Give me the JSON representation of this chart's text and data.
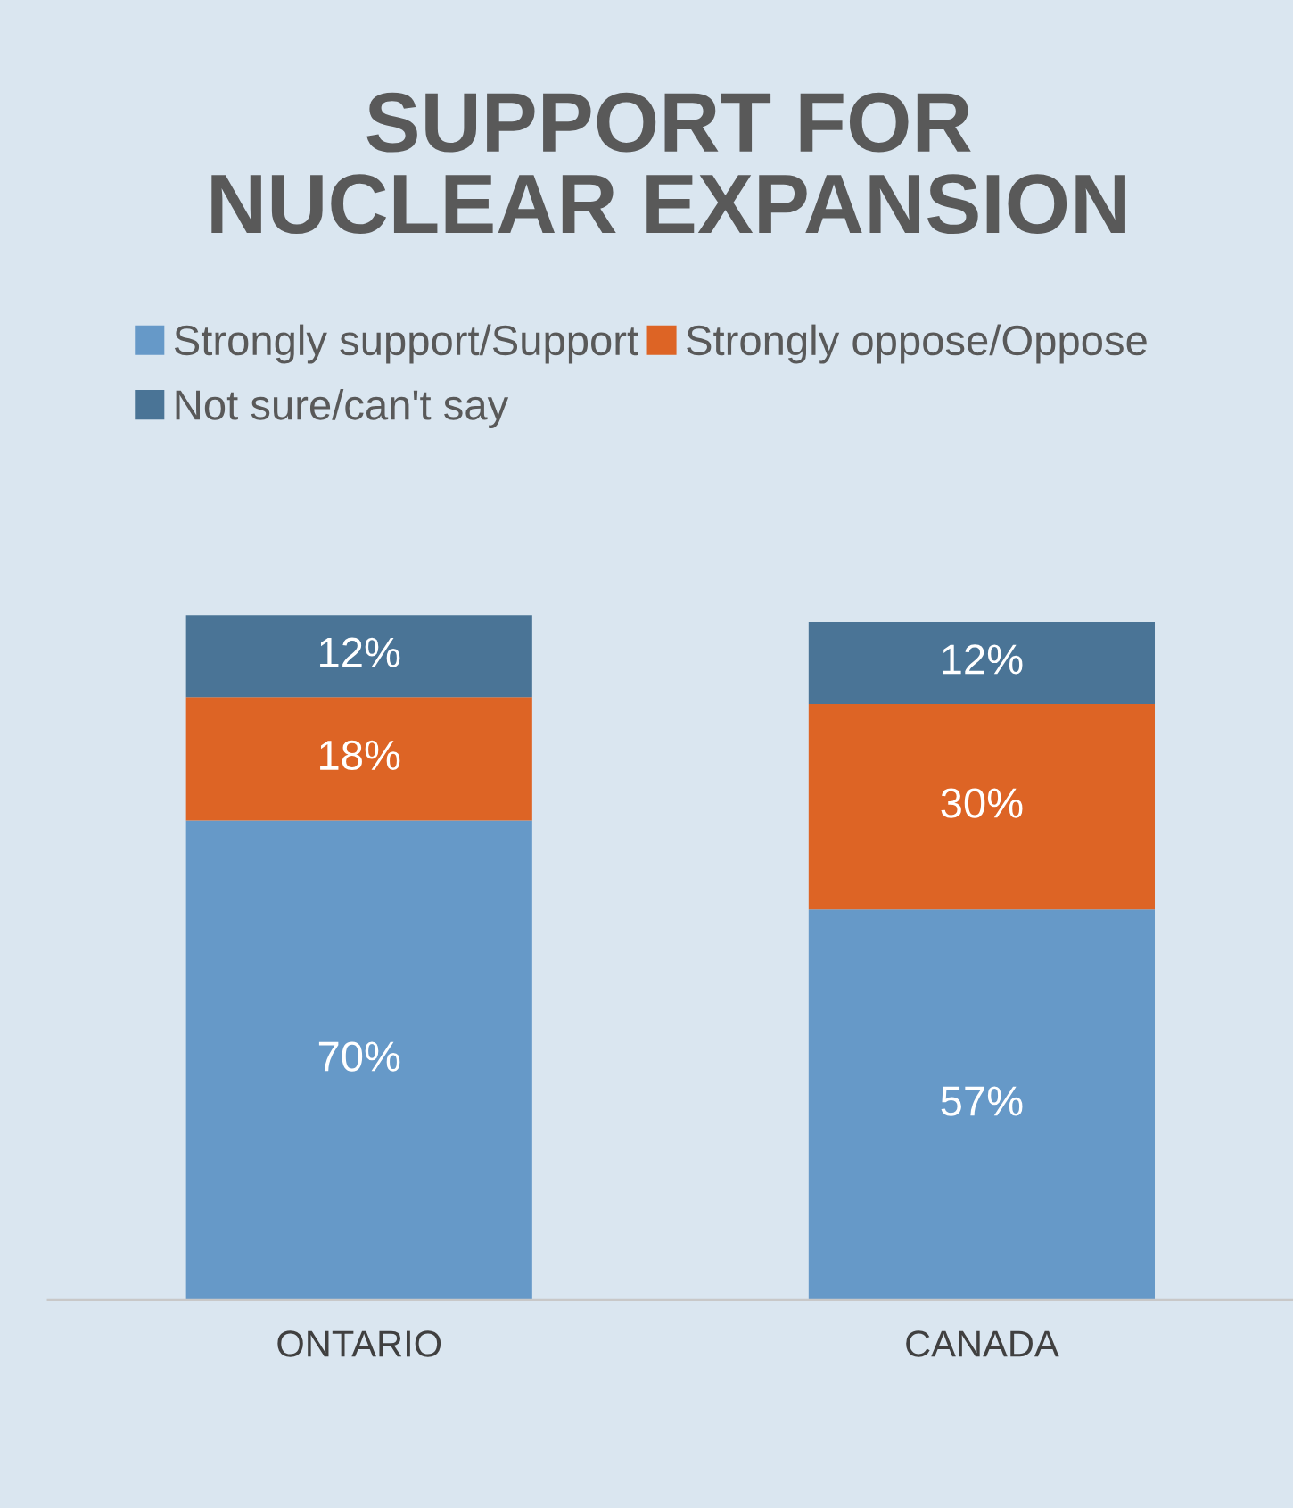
{
  "chart_data": {
    "type": "bar",
    "stacked": true,
    "title": "SUPPORT FOR\nNUCLEAR EXPANSION",
    "categories": [
      "ONTARIO",
      "CANADA"
    ],
    "legend": "top left",
    "series": [
      {
        "name": "Strongly support/Support",
        "color": "#6699c8",
        "values": [
          70,
          57
        ],
        "value_labels": [
          "70%",
          "57%"
        ]
      },
      {
        "name": "Strongly oppose/Oppose",
        "color": "#dd6425",
        "values": [
          18,
          30
        ],
        "value_labels": [
          "18%",
          "30%"
        ]
      },
      {
        "name": "Not sure/can't say",
        "color": "#4a7496",
        "values": [
          12,
          12
        ],
        "value_labels": [
          "12%",
          "12%"
        ]
      }
    ]
  }
}
